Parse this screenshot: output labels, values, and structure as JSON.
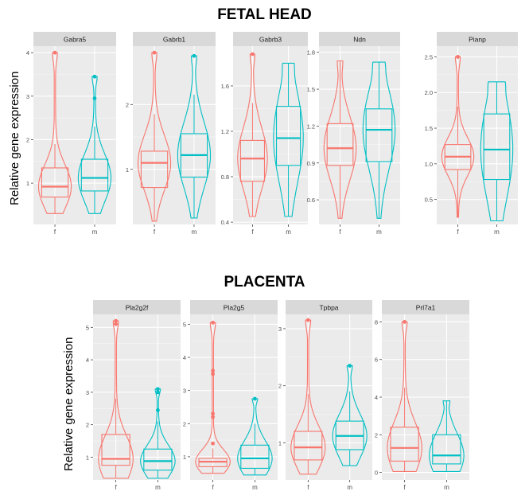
{
  "sections": {
    "fetal_head_title": "FETAL HEAD",
    "placenta_title": "PLACENTA",
    "fetal_head_ylabel": "Relative gene expression",
    "placenta_ylabel": "Relative gene expression"
  },
  "colors": {
    "f": "#F8766D",
    "m": "#00BFC4",
    "panel": "#EBEBEB",
    "strip": "#D9D9D9"
  },
  "chart_data": [
    {
      "type": "violin-box",
      "group": "fetal_head",
      "title": "Gabra5",
      "categories": [
        "f",
        "m"
      ],
      "ylim": [
        0.05,
        4.15
      ],
      "yticks": [
        1,
        2,
        3,
        4
      ],
      "series": [
        {
          "name": "f",
          "median": 0.92,
          "q1": 0.68,
          "q3": 1.35,
          "whisker_low": 0.3,
          "whisker_high": 1.9,
          "outliers": [
            4.0
          ]
        },
        {
          "name": "m",
          "median": 1.12,
          "q1": 0.82,
          "q3": 1.55,
          "whisker_low": 0.3,
          "whisker_high": 2.3,
          "outliers": [
            2.95,
            3.45
          ]
        }
      ]
    },
    {
      "type": "violin-box",
      "group": "fetal_head",
      "title": "Gabrb1",
      "categories": [
        "f",
        "m"
      ],
      "ylim": [
        0.15,
        2.9
      ],
      "yticks": [
        1,
        2
      ],
      "series": [
        {
          "name": "f",
          "median": 1.1,
          "q1": 0.72,
          "q3": 1.28,
          "whisker_low": 0.2,
          "whisker_high": 1.85,
          "outliers": [
            2.8
          ]
        },
        {
          "name": "m",
          "median": 1.22,
          "q1": 0.88,
          "q3": 1.55,
          "whisker_low": 0.25,
          "whisker_high": 2.15,
          "outliers": [
            2.75
          ]
        }
      ]
    },
    {
      "type": "violin-box",
      "group": "fetal_head",
      "title": "Gabrb3",
      "categories": [
        "f",
        "m"
      ],
      "ylim": [
        0.38,
        1.95
      ],
      "yticks": [
        0.4,
        0.8,
        1.2,
        1.6
      ],
      "series": [
        {
          "name": "f",
          "median": 0.96,
          "q1": 0.76,
          "q3": 1.12,
          "whisker_low": 0.45,
          "whisker_high": 1.45,
          "outliers": [
            1.88
          ]
        },
        {
          "name": "m",
          "median": 1.14,
          "q1": 0.9,
          "q3": 1.42,
          "whisker_low": 0.45,
          "whisker_high": 1.8,
          "outliers": []
        }
      ]
    },
    {
      "type": "violin-box",
      "group": "fetal_head",
      "title": "Ndn",
      "categories": [
        "f",
        "m"
      ],
      "ylim": [
        0.4,
        1.85
      ],
      "yticks": [
        0.6,
        0.9,
        1.2,
        1.5,
        1.8
      ],
      "series": [
        {
          "name": "f",
          "median": 1.02,
          "q1": 0.88,
          "q3": 1.22,
          "whisker_low": 0.45,
          "whisker_high": 1.73,
          "outliers": []
        },
        {
          "name": "m",
          "median": 1.17,
          "q1": 0.91,
          "q3": 1.34,
          "whisker_low": 0.45,
          "whisker_high": 1.72,
          "outliers": []
        }
      ]
    },
    {
      "type": "violin-box",
      "group": "fetal_head",
      "title": "Pianp",
      "categories": [
        "f",
        "m"
      ],
      "ylim": [
        0.15,
        2.65
      ],
      "yticks": [
        0.5,
        1.0,
        1.5,
        2.0,
        2.5
      ],
      "series": [
        {
          "name": "f",
          "median": 1.1,
          "q1": 0.92,
          "q3": 1.27,
          "whisker_low": 0.25,
          "whisker_high": 1.8,
          "outliers": [
            2.5
          ]
        },
        {
          "name": "m",
          "median": 1.2,
          "q1": 0.78,
          "q3": 1.7,
          "whisker_low": 0.2,
          "whisker_high": 2.15,
          "outliers": []
        }
      ]
    },
    {
      "type": "violin-box",
      "group": "placenta",
      "title": "Pla2g2f",
      "categories": [
        "f",
        "m"
      ],
      "ylim": [
        0.3,
        5.4
      ],
      "yticks": [
        1,
        2,
        3,
        4,
        5
      ],
      "series": [
        {
          "name": "f",
          "median": 0.95,
          "q1": 0.75,
          "q3": 1.7,
          "whisker_low": 0.35,
          "whisker_high": 2.8,
          "outliers": [
            5.1,
            5.2
          ]
        },
        {
          "name": "m",
          "median": 0.88,
          "q1": 0.6,
          "q3": 1.25,
          "whisker_low": 0.35,
          "whisker_high": 2.1,
          "outliers": [
            2.45,
            3.0,
            3.1
          ]
        }
      ]
    },
    {
      "type": "violin-box",
      "group": "placenta",
      "title": "Pla2g5",
      "categories": [
        "f",
        "m"
      ],
      "ylim": [
        0.3,
        5.3
      ],
      "yticks": [
        1,
        2,
        3,
        4,
        5
      ],
      "series": [
        {
          "name": "f",
          "median": 0.85,
          "q1": 0.7,
          "q3": 0.95,
          "whisker_low": 0.5,
          "whisker_high": 1.25,
          "outliers": [
            1.4,
            2.2,
            2.3,
            3.5,
            3.6,
            5.05
          ]
        },
        {
          "name": "m",
          "median": 0.95,
          "q1": 0.65,
          "q3": 1.35,
          "whisker_low": 0.45,
          "whisker_high": 2.0,
          "outliers": [
            2.75
          ]
        }
      ]
    },
    {
      "type": "violin-box",
      "group": "placenta",
      "title": "Tpbpa",
      "categories": [
        "f",
        "m"
      ],
      "ylim": [
        0.35,
        3.25
      ],
      "yticks": [
        1,
        2,
        3
      ],
      "series": [
        {
          "name": "f",
          "median": 0.92,
          "q1": 0.7,
          "q3": 1.2,
          "whisker_low": 0.45,
          "whisker_high": 1.85,
          "outliers": [
            3.15
          ]
        },
        {
          "name": "m",
          "median": 1.12,
          "q1": 0.88,
          "q3": 1.38,
          "whisker_low": 0.6,
          "whisker_high": 1.9,
          "outliers": [
            2.35
          ]
        }
      ]
    },
    {
      "type": "violin-box",
      "group": "placenta",
      "title": "Prl7a1",
      "categories": [
        "f",
        "m"
      ],
      "ylim": [
        -0.4,
        8.4
      ],
      "yticks": [
        0,
        2,
        4,
        6,
        8
      ],
      "series": [
        {
          "name": "f",
          "median": 1.3,
          "q1": 0.6,
          "q3": 2.4,
          "whisker_low": 0.05,
          "whisker_high": 4.5,
          "outliers": [
            8.0
          ]
        },
        {
          "name": "m",
          "median": 0.9,
          "q1": 0.45,
          "q3": 2.0,
          "whisker_low": 0.05,
          "whisker_high": 3.8,
          "outliers": []
        }
      ]
    }
  ]
}
